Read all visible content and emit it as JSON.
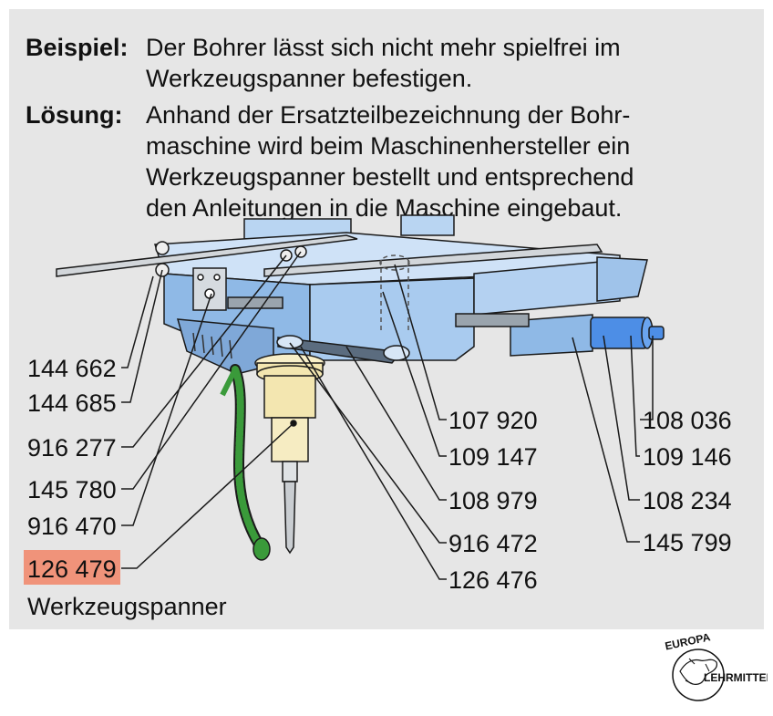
{
  "text": {
    "example_label": "Beispiel:",
    "example_lines": [
      "Der Bohrer lässt sich nicht mehr spielfrei im",
      "Werkzeugspanner befestigen."
    ],
    "solution_label": "Lösung:",
    "solution_lines": [
      "Anhand der Ersatzteilbezeichnung der Bohr-",
      "maschine wird beim Maschinenhersteller ein",
      "Werkzeugspanner bestellt und entsprechend",
      "den Anleitungen in die Maschine eingebaut."
    ]
  },
  "left_labels": [
    "144 662",
    "144 685",
    "916 277",
    "145 780",
    "916 470"
  ],
  "highlighted_part": {
    "number": "126 479",
    "name": "Werkzeugspanner",
    "highlight_color": "#f0937a"
  },
  "middle_labels": [
    "107 920",
    "109 147",
    "108 979",
    "916 472",
    "126 476"
  ],
  "right_labels": [
    "108 036",
    "109 146",
    "108 234",
    "145 799"
  ],
  "logo": {
    "top": "EUROPA",
    "right": "LEHRMITTEL"
  },
  "colors": {
    "machine_blue": "#9cc3ec",
    "hose_green": "#3a9a3a",
    "chuck_cream": "#f3e6b0",
    "panel_gray": "#e6e6e6"
  }
}
